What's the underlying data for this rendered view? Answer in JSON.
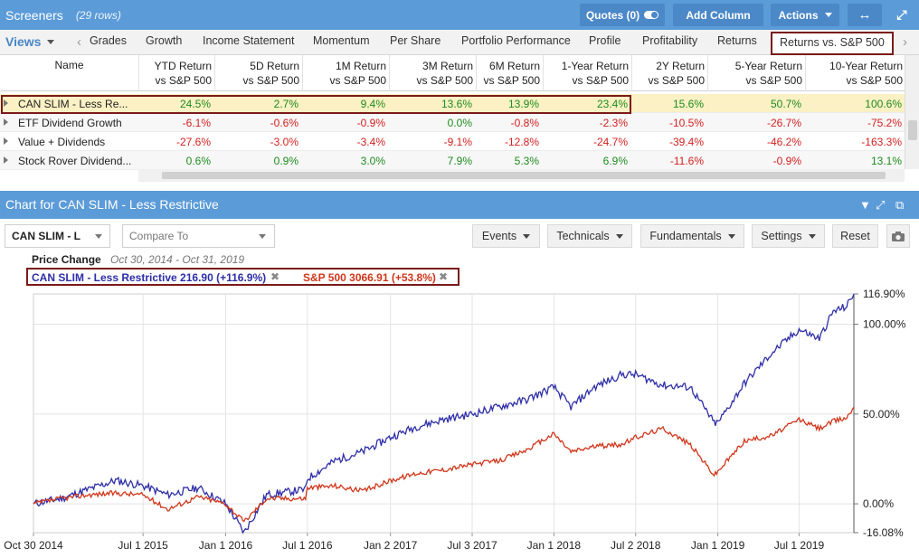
{
  "screener": {
    "title": "Screeners",
    "row_count": "(29 rows)",
    "quotes_label": "Quotes (0)",
    "add_column_label": "Add Column",
    "actions_label": "Actions"
  },
  "tabs": {
    "views_label": "Views",
    "items": [
      "Grades",
      "Growth",
      "Income Statement",
      "Momentum",
      "Per Share",
      "Portfolio Performance",
      "Profile",
      "Profitability",
      "Returns",
      "Returns vs. S&P 500"
    ],
    "active": "Returns vs. S&P 500"
  },
  "table": {
    "name_header": "Name",
    "columns": [
      {
        "l1": "YTD Return",
        "l2": "vs S&P 500"
      },
      {
        "l1": "5D Return",
        "l2": "vs S&P 500"
      },
      {
        "l1": "1M Return",
        "l2": "vs S&P 500"
      },
      {
        "l1": "3M Return",
        "l2": "vs S&P 500"
      },
      {
        "l1": "6M Return",
        "l2": "vs S&P 500"
      },
      {
        "l1": "1-Year Return",
        "l2": "vs S&P 500"
      },
      {
        "l1": "2Y Return",
        "l2": "vs S&P 500"
      },
      {
        "l1": "5-Year Return",
        "l2": "vs S&P 500"
      },
      {
        "l1": "10-Year Return",
        "l2": "vs S&P 500"
      }
    ],
    "rows": [
      {
        "name": "CAN SLIM - Less Re...",
        "values": [
          "24.5%",
          "2.7%",
          "9.4%",
          "13.6%",
          "13.9%",
          "23.4%",
          "15.6%",
          "50.7%",
          "100.6%"
        ],
        "selected": true
      },
      {
        "name": "ETF Dividend Growth",
        "values": [
          "-6.1%",
          "-0.6%",
          "-0.9%",
          "0.0%",
          "-0.8%",
          "-2.3%",
          "-10.5%",
          "-26.7%",
          "-75.2%"
        ]
      },
      {
        "name": "Value + Dividends",
        "values": [
          "-27.6%",
          "-3.0%",
          "-3.4%",
          "-9.1%",
          "-12.8%",
          "-24.7%",
          "-39.4%",
          "-46.2%",
          "-163.3%"
        ]
      },
      {
        "name": "Stock Rover Dividend...",
        "values": [
          "0.6%",
          "0.9%",
          "3.0%",
          "7.9%",
          "5.3%",
          "6.9%",
          "-11.6%",
          "-0.9%",
          "13.1%"
        ]
      }
    ]
  },
  "chart_panel": {
    "title": "Chart for CAN SLIM - Less Restrictive",
    "symbol_value": "CAN SLIM - L",
    "compare_placeholder": "Compare To",
    "events_label": "Events",
    "technicals_label": "Technicals",
    "fundamentals_label": "Fundamentals",
    "settings_label": "Settings",
    "reset_label": "Reset",
    "price_change_label": "Price Change",
    "date_range": "Oct 30, 2014 - Oct 31, 2019",
    "legend": [
      {
        "label": "CAN SLIM - Less Restrictive 216.90 (+116.9%)",
        "color": "#2e2ea8"
      },
      {
        "label": "S&P 500 3066.91 (+53.8%)",
        "color": "#d0361a"
      }
    ]
  },
  "chart_data": {
    "type": "line",
    "x_ticks": [
      "Oct 30 2014",
      "Jul 1 2015",
      "Jan 1 2016",
      "Jul 1 2016",
      "Jan 2 2017",
      "Jul 3 2017",
      "Jan 1 2018",
      "Jul 2 2018",
      "Jan 1 2019",
      "Jul 1 2019"
    ],
    "y_ticks": [
      "116.90%",
      "100.00%",
      "50.00%",
      "0.00%",
      "-16.08%"
    ],
    "ylim": [
      -16.08,
      116.9
    ],
    "xlim": [
      "2014-10-30",
      "2019-10-31"
    ],
    "grid": true,
    "series": [
      {
        "name": "CAN SLIM - Less Restrictive",
        "color": "#2e2ea8",
        "x": [
          "2014-10-30",
          "2015-01-01",
          "2015-03-01",
          "2015-05-01",
          "2015-07-01",
          "2015-08-25",
          "2015-11-01",
          "2016-01-01",
          "2016-02-11",
          "2016-04-01",
          "2016-06-27",
          "2016-07-01",
          "2016-09-01",
          "2016-11-01",
          "2017-01-02",
          "2017-03-01",
          "2017-05-01",
          "2017-07-03",
          "2017-09-01",
          "2017-11-01",
          "2018-01-01",
          "2018-02-08",
          "2018-04-01",
          "2018-06-01",
          "2018-07-02",
          "2018-09-01",
          "2018-11-01",
          "2018-12-24",
          "2019-01-01",
          "2019-03-01",
          "2019-05-01",
          "2019-07-01",
          "2019-08-15",
          "2019-09-15",
          "2019-10-15",
          "2019-10-31"
        ],
        "values": [
          0,
          3,
          8,
          13,
          10,
          5,
          9,
          0,
          -16,
          5,
          8,
          14,
          24,
          29,
          37,
          43,
          47,
          50,
          54,
          58,
          65,
          54,
          65,
          72,
          72,
          66,
          65,
          45,
          45,
          67,
          84,
          97,
          92,
          107,
          110,
          116.9
        ]
      },
      {
        "name": "S&P 500",
        "color": "#d0361a",
        "x": [
          "2014-10-30",
          "2015-01-01",
          "2015-03-01",
          "2015-05-01",
          "2015-07-01",
          "2015-08-25",
          "2015-11-01",
          "2016-01-01",
          "2016-02-11",
          "2016-04-01",
          "2016-06-27",
          "2016-07-01",
          "2016-09-01",
          "2016-11-01",
          "2017-01-02",
          "2017-03-01",
          "2017-05-01",
          "2017-07-03",
          "2017-09-01",
          "2017-11-01",
          "2018-01-01",
          "2018-02-08",
          "2018-04-01",
          "2018-06-01",
          "2018-07-02",
          "2018-09-01",
          "2018-11-01",
          "2018-12-24",
          "2019-01-01",
          "2019-03-01",
          "2019-05-01",
          "2019-07-01",
          "2019-08-15",
          "2019-09-15",
          "2019-10-15",
          "2019-10-31"
        ],
        "values": [
          0,
          3,
          5,
          6,
          5,
          -3,
          4,
          0,
          -10,
          3,
          3,
          9,
          10,
          7,
          13,
          17,
          19,
          22,
          24,
          30,
          39,
          29,
          32,
          33,
          37,
          42,
          33,
          16,
          18,
          35,
          38,
          47,
          42,
          46,
          48,
          53.8
        ]
      }
    ]
  }
}
